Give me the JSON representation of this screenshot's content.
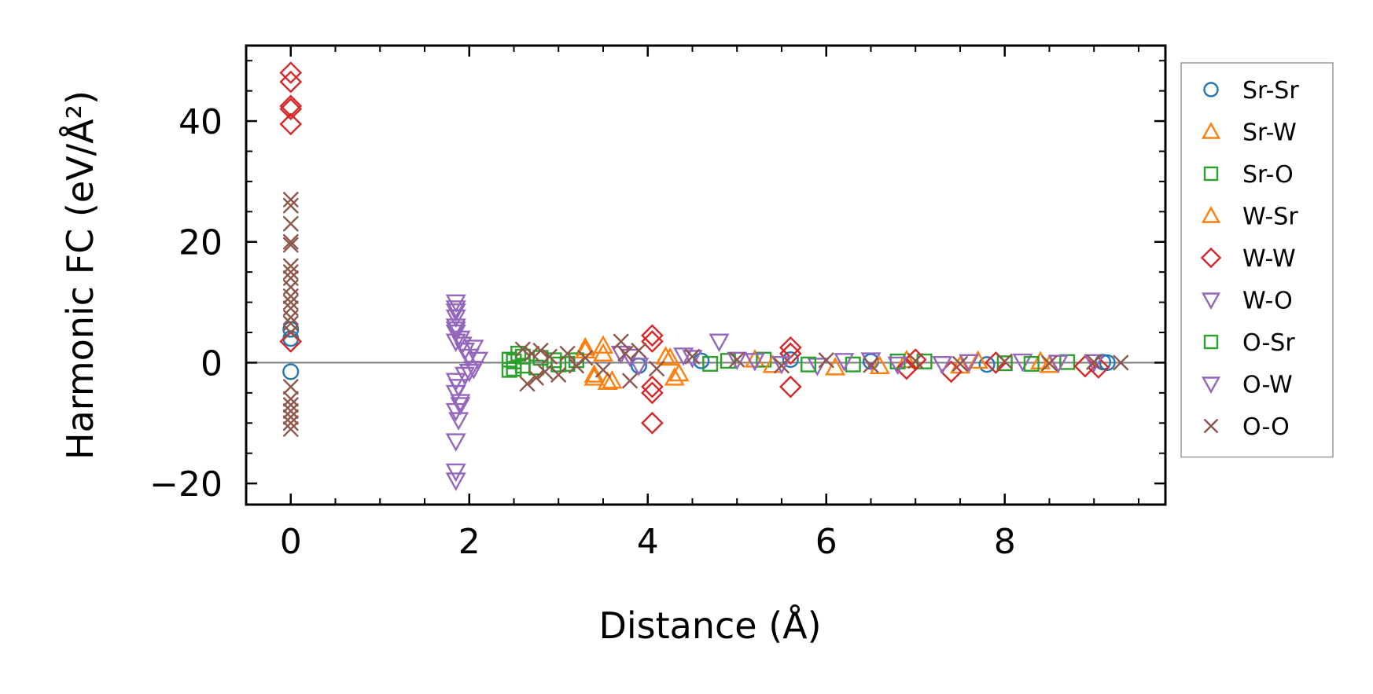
{
  "chart_data": {
    "type": "scatter",
    "title": "",
    "xlabel": "Distance (Å)",
    "ylabel": "Harmonic FC (eV/Å²)",
    "xlim": [
      -0.5,
      9.8
    ],
    "ylim": [
      -23.5,
      52.5
    ],
    "xticks": [
      0,
      2,
      4,
      6,
      8
    ],
    "yticks": [
      -20,
      0,
      20,
      40
    ],
    "xtick_labels": [
      "0",
      "2",
      "4",
      "6",
      "8"
    ],
    "ytick_labels": [
      "−20",
      "0",
      "20",
      "40"
    ],
    "zero_line": 0,
    "legend_position": "outside-right",
    "series": [
      {
        "name": "Sr-Sr",
        "marker": "circle",
        "color": "#1f77b4",
        "points": [
          [
            0,
            5.5
          ],
          [
            0,
            -1.5
          ],
          [
            0,
            4
          ],
          [
            3.9,
            -0.5
          ],
          [
            4.6,
            0.3
          ],
          [
            5.6,
            0.5
          ],
          [
            6.5,
            0.2
          ],
          [
            7.8,
            -0.3
          ],
          [
            9.1,
            0.1
          ],
          [
            9.15,
            0.0
          ]
        ]
      },
      {
        "name": "Sr-W",
        "marker": "triangle-up",
        "color": "#ff7f0e",
        "points": [
          [
            3.3,
            2.5
          ],
          [
            3.4,
            -2.5
          ],
          [
            3.5,
            1.5
          ],
          [
            3.6,
            -3.0
          ],
          [
            4.2,
            1.0
          ],
          [
            4.3,
            -2.5
          ],
          [
            5.2,
            0.5
          ],
          [
            6.1,
            -0.8
          ],
          [
            6.9,
            0.4
          ],
          [
            7.5,
            -0.5
          ],
          [
            8.4,
            0.2
          ]
        ]
      },
      {
        "name": "Sr-O",
        "marker": "square",
        "color": "#2ca02c",
        "points": [
          [
            2.45,
            0.5
          ],
          [
            2.5,
            -1.0
          ],
          [
            2.55,
            1.5
          ],
          [
            2.6,
            -0.5
          ],
          [
            2.8,
            0.8
          ],
          [
            3.0,
            -0.3
          ],
          [
            3.2,
            0.4
          ],
          [
            4.7,
            -0.2
          ],
          [
            5.3,
            0.5
          ],
          [
            6.3,
            -0.3
          ],
          [
            7.1,
            0.2
          ],
          [
            8.0,
            -0.1
          ],
          [
            8.7,
            0.1
          ]
        ]
      },
      {
        "name": "W-Sr",
        "marker": "triangle-up",
        "color": "#ff7f0e",
        "points": [
          [
            3.3,
            2.0
          ],
          [
            3.4,
            -2.0
          ],
          [
            3.5,
            2.8
          ],
          [
            3.55,
            -3.2
          ],
          [
            4.25,
            0.8
          ],
          [
            4.35,
            -1.8
          ],
          [
            5.4,
            -0.4
          ],
          [
            6.6,
            -0.6
          ],
          [
            7.7,
            0.3
          ],
          [
            8.5,
            -0.4
          ]
        ]
      },
      {
        "name": "W-W",
        "marker": "diamond",
        "color": "#d62728",
        "points": [
          [
            0,
            48
          ],
          [
            0,
            46.5
          ],
          [
            0,
            42.5
          ],
          [
            0,
            42
          ],
          [
            0,
            39.5
          ],
          [
            0,
            3.5
          ],
          [
            4.05,
            4.5
          ],
          [
            4.05,
            3.5
          ],
          [
            4.05,
            -4.0
          ],
          [
            4.05,
            -5.0
          ],
          [
            4.05,
            -10.0
          ],
          [
            5.6,
            2.5
          ],
          [
            5.6,
            -4.0
          ],
          [
            5.6,
            1.5
          ],
          [
            6.9,
            -1.0
          ],
          [
            7.0,
            0.5
          ],
          [
            7.4,
            -1.5
          ],
          [
            7.9,
            0.0
          ],
          [
            8.9,
            -0.6
          ],
          [
            9.05,
            -0.8
          ]
        ]
      },
      {
        "name": "W-O",
        "marker": "triangle-down",
        "color": "#9467bd",
        "points": [
          [
            1.85,
            10
          ],
          [
            1.85,
            9
          ],
          [
            1.85,
            7.5
          ],
          [
            1.85,
            6
          ],
          [
            1.85,
            5
          ],
          [
            1.85,
            3.5
          ],
          [
            1.85,
            -3
          ],
          [
            1.85,
            -5
          ],
          [
            1.9,
            -6.5
          ],
          [
            1.85,
            -8
          ],
          [
            1.88,
            -9.5
          ],
          [
            1.85,
            -13
          ],
          [
            1.85,
            -18
          ],
          [
            1.85,
            -19.5
          ],
          [
            1.9,
            4
          ],
          [
            1.95,
            2
          ],
          [
            1.95,
            -2
          ],
          [
            2.0,
            1
          ],
          [
            2.05,
            -1
          ],
          [
            2.1,
            0.5
          ],
          [
            3.7,
            1.5
          ],
          [
            3.9,
            -0.5
          ],
          [
            4.4,
            1.2
          ],
          [
            4.8,
            3.5
          ],
          [
            5.2,
            0.3
          ],
          [
            5.9,
            -0.5
          ],
          [
            6.5,
            0.4
          ],
          [
            7.3,
            -0.2
          ],
          [
            8.2,
            0.2
          ],
          [
            9.0,
            0.1
          ]
        ]
      },
      {
        "name": "O-Sr",
        "marker": "square",
        "color": "#2ca02c",
        "points": [
          [
            2.45,
            -1.2
          ],
          [
            2.5,
            0.2
          ],
          [
            2.6,
            1.0
          ],
          [
            2.75,
            -0.8
          ],
          [
            2.95,
            0.4
          ],
          [
            3.1,
            -0.2
          ],
          [
            4.9,
            0.3
          ],
          [
            5.8,
            -0.3
          ],
          [
            6.8,
            0.2
          ],
          [
            8.3,
            -0.2
          ]
        ]
      },
      {
        "name": "O-W",
        "marker": "triangle-down",
        "color": "#9467bd",
        "points": [
          [
            1.85,
            8.5
          ],
          [
            1.85,
            5.5
          ],
          [
            1.88,
            -4
          ],
          [
            1.9,
            -7
          ],
          [
            1.92,
            3
          ],
          [
            2.0,
            -1.5
          ],
          [
            2.05,
            2.5
          ],
          [
            3.8,
            1.0
          ],
          [
            4.5,
            0.8
          ],
          [
            5.0,
            0.5
          ],
          [
            5.5,
            -0.2
          ],
          [
            6.2,
            0.3
          ],
          [
            6.8,
            -0.3
          ],
          [
            7.6,
            0.1
          ],
          [
            8.6,
            0.0
          ]
        ]
      },
      {
        "name": "O-O",
        "marker": "cross",
        "color": "#8c564b",
        "points": [
          [
            0,
            27
          ],
          [
            0,
            26
          ],
          [
            0,
            23
          ],
          [
            0,
            20
          ],
          [
            0,
            19.5
          ],
          [
            0,
            16
          ],
          [
            0,
            15
          ],
          [
            0,
            14
          ],
          [
            0,
            12.5
          ],
          [
            0,
            11
          ],
          [
            0,
            10
          ],
          [
            0,
            9
          ],
          [
            0,
            7.5
          ],
          [
            0,
            6.5
          ],
          [
            0,
            5
          ],
          [
            0,
            -4
          ],
          [
            0,
            -6
          ],
          [
            0,
            -7
          ],
          [
            0,
            -8
          ],
          [
            0,
            -9
          ],
          [
            0,
            -10
          ],
          [
            0,
            -11
          ],
          [
            2.6,
            2.2
          ],
          [
            2.65,
            -3.5
          ],
          [
            2.7,
            1.5
          ],
          [
            2.75,
            -2.5
          ],
          [
            2.8,
            2.0
          ],
          [
            2.85,
            -1.5
          ],
          [
            2.9,
            1.0
          ],
          [
            3.0,
            -2.0
          ],
          [
            3.1,
            1.5
          ],
          [
            3.2,
            -0.5
          ],
          [
            3.3,
            0.8
          ],
          [
            3.5,
            -1.2
          ],
          [
            3.7,
            3.5
          ],
          [
            3.75,
            1.5
          ],
          [
            3.8,
            -3.0
          ],
          [
            3.9,
            2.0
          ],
          [
            4.1,
            -1.0
          ],
          [
            4.5,
            1.0
          ],
          [
            5.0,
            0.5
          ],
          [
            5.5,
            -0.5
          ],
          [
            6.0,
            0.4
          ],
          [
            6.5,
            -0.4
          ],
          [
            7.0,
            0.3
          ],
          [
            7.5,
            -0.2
          ],
          [
            8.0,
            0.2
          ],
          [
            8.5,
            -0.1
          ],
          [
            9.0,
            0.1
          ],
          [
            9.3,
            0.0
          ]
        ]
      }
    ]
  }
}
